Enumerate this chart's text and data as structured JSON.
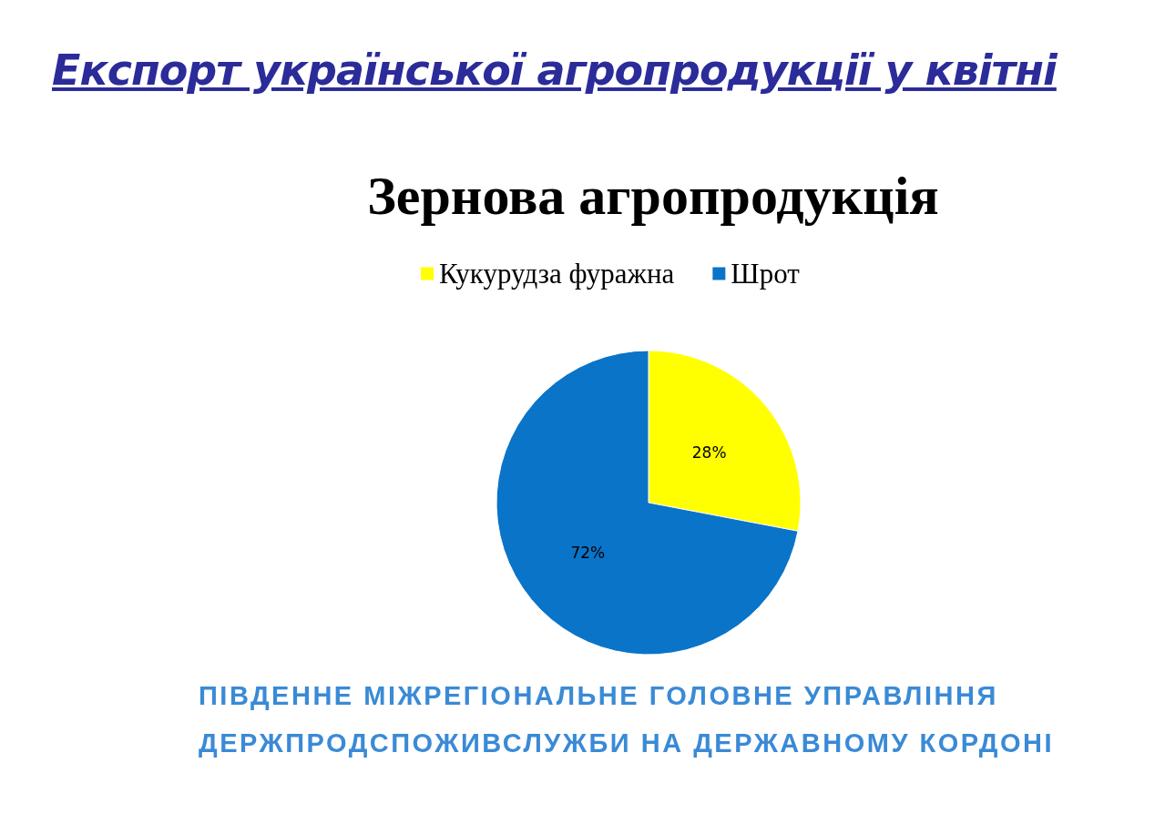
{
  "chart_data": {
    "type": "pie",
    "title": "Експорт української агропродукції у квітні",
    "subtitle": "Зернова агропродукція",
    "categories": [
      "Кукурудза фуражна",
      "Шрот"
    ],
    "values": [
      28,
      72
    ],
    "colors": [
      "#ffff00",
      "#0a74c8"
    ],
    "value_labels": [
      "28%",
      "72%"
    ],
    "legend": "top",
    "annotations": [
      "ПІВДЕННЕ МІЖРЕГІОНАЛЬНЕ ГОЛОВНЕ УПРАВЛІННЯ",
      "ДЕРЖПРОДСПОЖИВСЛУЖБИ НА ДЕРЖАВНОМУ КОРДОНІ"
    ]
  }
}
